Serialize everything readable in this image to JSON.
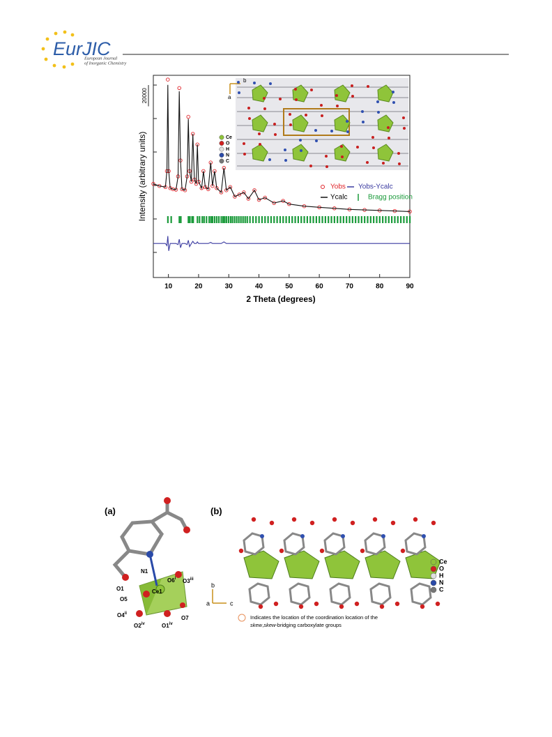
{
  "header": {
    "journal": "EurJIC",
    "subtitle_line1": "European Journal",
    "subtitle_line2": "of Inorganic Chemistry"
  },
  "chart_data": {
    "type": "line",
    "xlabel": "2 Theta (degrees)",
    "ylabel": "Intensity (arbitrary units)",
    "xlim": [
      5,
      90
    ],
    "ylim": [
      0,
      190000
    ],
    "xticks": [
      10,
      20,
      30,
      40,
      50,
      60,
      70,
      80,
      90
    ],
    "scale_bar": 20000,
    "x": [
      5,
      7,
      9,
      9.5,
      9.8,
      10.1,
      10.6,
      11.5,
      12.5,
      13.2,
      13.6,
      14.0,
      14.5,
      15.5,
      16.2,
      16.6,
      17.0,
      17.6,
      18.1,
      18.6,
      19.2,
      19.6,
      20.0,
      21.0,
      21.6,
      22.2,
      23.2,
      24.0,
      24.6,
      25.3,
      26,
      27.5,
      28.4,
      29.2,
      30.5,
      32,
      33.5,
      35,
      36.5,
      38.5,
      40,
      42,
      45,
      48,
      50,
      55,
      60,
      65,
      70,
      75,
      80,
      85,
      90
    ],
    "series": [
      {
        "name": "Yobs",
        "color": "#e0242a",
        "style": "markers",
        "values": [
          88000,
          86000,
          85000,
          100000,
          186000,
          100000,
          84000,
          83000,
          82500,
          95000,
          178000,
          110000,
          83000,
          82000,
          95000,
          151000,
          100000,
          90000,
          135000,
          92000,
          88000,
          125000,
          90000,
          84000,
          100000,
          85000,
          83000,
          108000,
          86000,
          100000,
          84000,
          80000,
          103000,
          82000,
          85000,
          76000,
          78000,
          80000,
          74000,
          82000,
          73000,
          75000,
          70000,
          72000,
          69000,
          67000,
          66000,
          65000,
          64000,
          63500,
          63000,
          62500,
          62000
        ]
      },
      {
        "name": "Ycalc",
        "color": "#111111",
        "style": "line",
        "values": [
          88000,
          86000,
          85000,
          100000,
          181000,
          100000,
          84000,
          83000,
          82500,
          95000,
          175000,
          110000,
          83000,
          82000,
          95000,
          149000,
          100000,
          90000,
          135000,
          92000,
          88000,
          125000,
          90000,
          84000,
          100000,
          85000,
          83000,
          108000,
          86000,
          100000,
          84000,
          80000,
          103000,
          82000,
          85000,
          76000,
          78000,
          80000,
          74000,
          82000,
          73000,
          75000,
          70000,
          72000,
          69000,
          67000,
          66000,
          65000,
          64000,
          63500,
          63000,
          62500,
          62000
        ]
      },
      {
        "name": "Yobs-Ycalc",
        "color": "#3a3aa0",
        "style": "line",
        "values": [
          32000,
          32000,
          32000,
          30000,
          39000,
          25000,
          32000,
          32000,
          32000,
          31000,
          36000,
          28000,
          32000,
          32000,
          31000,
          35000,
          29000,
          32000,
          34000,
          32000,
          32000,
          33500,
          32000,
          32000,
          32000,
          32000,
          32000,
          33000,
          32000,
          32000,
          32000,
          32000,
          33500,
          32000,
          32000,
          32000,
          32000,
          32000,
          32000,
          32000,
          32000,
          32000,
          32000,
          32000,
          32000,
          32000,
          32000,
          32000,
          32000,
          32000,
          32000,
          32000,
          32000
        ]
      }
    ],
    "bragg": {
      "name": "Bragg position",
      "color": "#1a9a3a",
      "positions": [
        9.8,
        10.9,
        13.6,
        14.1,
        16.6,
        17.1,
        17.8,
        18.2,
        19.6,
        20.3,
        21.2,
        21.8,
        22.6,
        23.5,
        24.1,
        24.6,
        25.3,
        26.0,
        26.7,
        27.5,
        28.1,
        28.6,
        29.2,
        29.9,
        30.6,
        31.2,
        31.9,
        32.6,
        33.3,
        34.0,
        34.7,
        35.4,
        36.1,
        37,
        38,
        39,
        40,
        41,
        42,
        43,
        44,
        45,
        46,
        47,
        48,
        49,
        50,
        51,
        52,
        53,
        54,
        55,
        56,
        57,
        58,
        59,
        60,
        61,
        62,
        63,
        64,
        65,
        66,
        67,
        68,
        69,
        70,
        71,
        72,
        73,
        74,
        75,
        76,
        77,
        78,
        79,
        80,
        81,
        82,
        83,
        84,
        85,
        86,
        87,
        88,
        89,
        90
      ]
    },
    "inset": {
      "axes": [
        "b",
        "a"
      ],
      "elements": [
        "Ce",
        "O",
        "H",
        "N",
        "C"
      ]
    }
  },
  "figure2": {
    "panel_a": "(a)",
    "panel_b": "(b)",
    "atoms": [
      "N1",
      "O6",
      "O3",
      "O1",
      "O5",
      "Ce1",
      "O4",
      "O7",
      "O2",
      "O1"
    ],
    "atom_sups": [
      "i",
      "iii",
      "ii",
      "iv",
      "iv"
    ],
    "axes": [
      "b",
      "a",
      "c"
    ],
    "elements": [
      "Ce",
      "O",
      "H",
      "N",
      "C"
    ],
    "note_line1": "Indicates the location of the coordination location of the",
    "note_italic1": "skew",
    "note_sep": ",",
    "note_italic2": "skew",
    "note_rest": "-bridging carboxylate groups"
  }
}
